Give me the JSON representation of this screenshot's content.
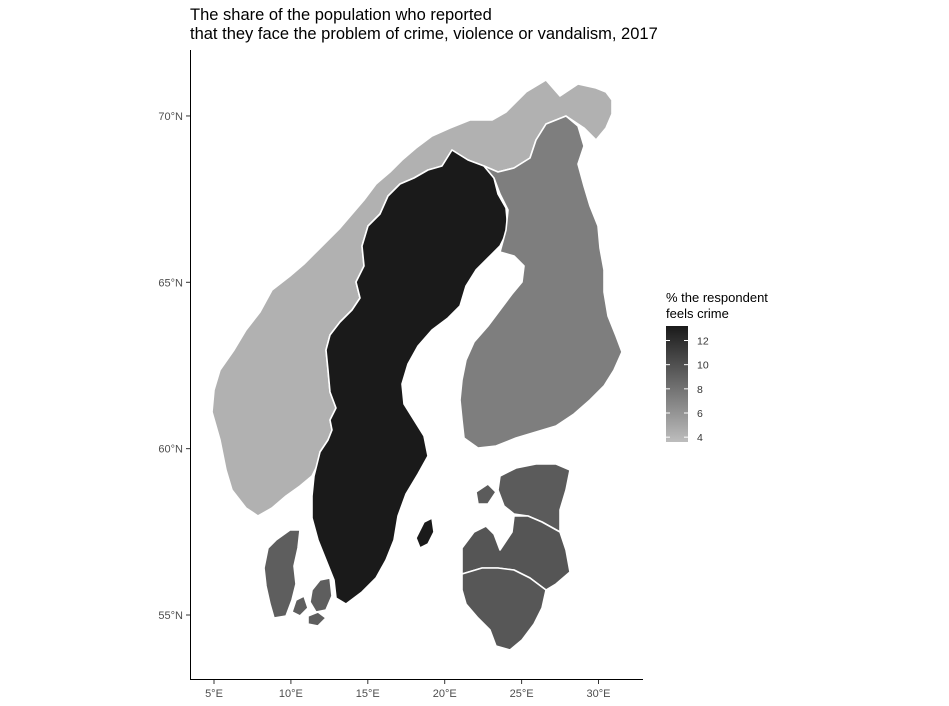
{
  "title": {
    "line1": "The share of the population who reported",
    "line2": "that they face the problem of crime, violence or vandalism, 2017"
  },
  "axes": {
    "x_ticks": [
      {
        "lon": 5,
        "label": "5°E"
      },
      {
        "lon": 10,
        "label": "10°E"
      },
      {
        "lon": 15,
        "label": "15°E"
      },
      {
        "lon": 20,
        "label": "20°E"
      },
      {
        "lon": 25,
        "label": "25°E"
      },
      {
        "lon": 30,
        "label": "30°E"
      }
    ],
    "y_ticks": [
      {
        "lat": 55,
        "label": "55°N"
      },
      {
        "lat": 60,
        "label": "60°N"
      },
      {
        "lat": 65,
        "label": "65°N"
      },
      {
        "lat": 70,
        "label": "70°N"
      }
    ]
  },
  "legend": {
    "title_line1": "% the respondent",
    "title_line2": "feels crime",
    "min": 3.6,
    "max": 13.2,
    "ticks": [
      {
        "value": 12,
        "label": "12"
      },
      {
        "value": 10,
        "label": "10"
      },
      {
        "value": 8,
        "label": "8"
      },
      {
        "value": 6,
        "label": "6"
      },
      {
        "value": 4,
        "label": "4"
      }
    ],
    "color_low": "#bdbdbd",
    "color_high": "#1a1a1a"
  },
  "countries": [
    {
      "name": "Norway",
      "value": 4.3
    },
    {
      "name": "Sweden",
      "value": 13.2
    },
    {
      "name": "Finland",
      "value": 7.3
    },
    {
      "name": "Denmark",
      "value": 9.2
    },
    {
      "name": "Estonia",
      "value": 9.4
    },
    {
      "name": "Latvia",
      "value": 9.7
    },
    {
      "name": "Lithuania",
      "value": 9.6
    }
  ]
}
